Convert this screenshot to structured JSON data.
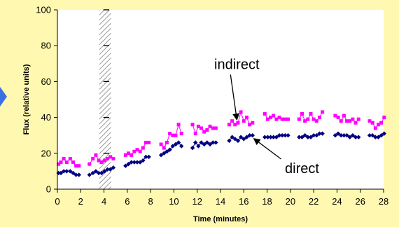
{
  "chart_data": {
    "type": "scatter",
    "xlabel": "Time (minutes)",
    "ylabel": "Flux (relative units)",
    "xlim": [
      0,
      28
    ],
    "ylim": [
      0,
      100
    ],
    "xticks": [
      "0",
      "2",
      "4",
      "6",
      "8",
      "10",
      "12",
      "14",
      "16",
      "18",
      "20",
      "22",
      "24",
      "26",
      "28"
    ],
    "yticks": [
      "0",
      "20",
      "40",
      "60",
      "80",
      "100"
    ],
    "grid": false,
    "shaded_band": {
      "x": [
        3.6,
        4.6
      ],
      "pattern": "diagonal-hatch"
    },
    "series": [
      {
        "name": "indirect",
        "color": "#FF00FF",
        "marker": "square",
        "segments": [
          [
            [
              0.1,
              14
            ],
            [
              0.3,
              15
            ],
            [
              0.55,
              17
            ],
            [
              0.8,
              15
            ],
            [
              1.1,
              17
            ],
            [
              1.35,
              15
            ],
            [
              1.6,
              13
            ],
            [
              1.85,
              13
            ]
          ],
          [
            [
              2.75,
              14
            ],
            [
              3.05,
              17
            ],
            [
              3.3,
              19
            ],
            [
              3.55,
              16
            ],
            [
              3.8,
              15
            ],
            [
              4.05,
              16
            ],
            [
              4.3,
              17
            ],
            [
              4.55,
              18
            ],
            [
              4.8,
              17
            ]
          ],
          [
            [
              5.85,
              19
            ],
            [
              6.1,
              20
            ],
            [
              6.35,
              19
            ],
            [
              6.6,
              21
            ],
            [
              6.85,
              22
            ],
            [
              7.1,
              21
            ],
            [
              7.35,
              23
            ],
            [
              7.6,
              26
            ],
            [
              7.85,
              26
            ]
          ],
          [
            [
              8.9,
              25
            ],
            [
              9.15,
              23
            ],
            [
              9.4,
              26
            ],
            [
              9.65,
              31
            ],
            [
              9.9,
              30
            ],
            [
              10.15,
              30
            ],
            [
              10.4,
              36
            ],
            [
              10.65,
              31
            ]
          ],
          [
            [
              11.6,
              36
            ],
            [
              11.85,
              31
            ],
            [
              12.1,
              35
            ],
            [
              12.35,
              34
            ],
            [
              12.6,
              32
            ],
            [
              12.85,
              33
            ],
            [
              13.1,
              35
            ],
            [
              13.35,
              34
            ],
            [
              13.6,
              34
            ]
          ],
          [
            [
              14.75,
              36
            ],
            [
              15.0,
              38
            ],
            [
              15.25,
              36
            ],
            [
              15.5,
              37
            ],
            [
              15.75,
              43
            ],
            [
              16.0,
              38
            ],
            [
              16.25,
              40
            ],
            [
              16.5,
              36
            ],
            [
              16.75,
              37
            ]
          ],
          [
            [
              17.8,
              42
            ],
            [
              18.05,
              39
            ],
            [
              18.3,
              40
            ],
            [
              18.55,
              41
            ],
            [
              18.8,
              39
            ],
            [
              19.05,
              40
            ],
            [
              19.3,
              39
            ],
            [
              19.55,
              39
            ],
            [
              19.8,
              39
            ]
          ],
          [
            [
              20.75,
              39
            ],
            [
              21.0,
              42
            ],
            [
              21.25,
              38
            ],
            [
              21.5,
              39
            ],
            [
              21.75,
              42
            ],
            [
              22.0,
              39
            ],
            [
              22.25,
              38
            ],
            [
              22.5,
              40
            ],
            [
              22.75,
              43
            ]
          ],
          [
            [
              23.85,
              41
            ],
            [
              24.1,
              40
            ],
            [
              24.35,
              38
            ],
            [
              24.6,
              41
            ],
            [
              24.85,
              38
            ],
            [
              25.1,
              38
            ],
            [
              25.35,
              39
            ],
            [
              25.6,
              37
            ],
            [
              25.85,
              39
            ]
          ],
          [
            [
              26.8,
              38
            ],
            [
              27.05,
              37
            ],
            [
              27.3,
              34
            ],
            [
              27.55,
              36
            ],
            [
              27.8,
              37
            ],
            [
              28.05,
              40
            ]
          ]
        ]
      },
      {
        "name": "direct",
        "color": "#000080",
        "marker": "diamond",
        "segments": [
          [
            [
              0.1,
              9
            ],
            [
              0.3,
              9
            ],
            [
              0.55,
              10
            ],
            [
              0.8,
              10
            ],
            [
              1.1,
              10
            ],
            [
              1.35,
              9
            ],
            [
              1.6,
              8
            ],
            [
              1.85,
              8
            ]
          ],
          [
            [
              2.75,
              8
            ],
            [
              3.05,
              9
            ],
            [
              3.3,
              10
            ],
            [
              3.55,
              9
            ],
            [
              3.8,
              9
            ],
            [
              4.05,
              10
            ],
            [
              4.3,
              11
            ],
            [
              4.55,
              11
            ],
            [
              4.8,
              12
            ]
          ],
          [
            [
              5.85,
              13
            ],
            [
              6.1,
              14
            ],
            [
              6.35,
              15
            ],
            [
              6.6,
              15
            ],
            [
              6.85,
              15
            ],
            [
              7.1,
              15
            ],
            [
              7.35,
              16
            ],
            [
              7.6,
              18
            ],
            [
              7.85,
              18
            ]
          ],
          [
            [
              8.9,
              19
            ],
            [
              9.15,
              20
            ],
            [
              9.4,
              21
            ],
            [
              9.65,
              22
            ],
            [
              9.9,
              24
            ],
            [
              10.15,
              25
            ],
            [
              10.4,
              26
            ],
            [
              10.65,
              24
            ]
          ],
          [
            [
              11.6,
              23
            ],
            [
              11.85,
              26
            ],
            [
              12.1,
              24
            ],
            [
              12.35,
              26
            ],
            [
              12.6,
              25
            ],
            [
              12.85,
              26
            ],
            [
              13.1,
              25
            ],
            [
              13.35,
              26
            ],
            [
              13.6,
              26
            ]
          ],
          [
            [
              14.75,
              27
            ],
            [
              15.0,
              29
            ],
            [
              15.25,
              28
            ],
            [
              15.5,
              27
            ],
            [
              15.75,
              29
            ],
            [
              16.0,
              28
            ],
            [
              16.25,
              29
            ],
            [
              16.5,
              30
            ],
            [
              16.75,
              30
            ]
          ],
          [
            [
              17.8,
              29
            ],
            [
              18.05,
              29
            ],
            [
              18.3,
              29
            ],
            [
              18.55,
              29
            ],
            [
              18.8,
              29
            ],
            [
              19.05,
              30
            ],
            [
              19.3,
              30
            ],
            [
              19.55,
              30
            ],
            [
              19.8,
              30
            ]
          ],
          [
            [
              20.75,
              29
            ],
            [
              21.0,
              29
            ],
            [
              21.25,
              30
            ],
            [
              21.5,
              29
            ],
            [
              21.75,
              29
            ],
            [
              22.0,
              30
            ],
            [
              22.25,
              30
            ],
            [
              22.5,
              31
            ],
            [
              22.75,
              31
            ]
          ],
          [
            [
              23.85,
              30
            ],
            [
              24.1,
              31
            ],
            [
              24.35,
              30
            ],
            [
              24.6,
              30
            ],
            [
              24.85,
              30
            ],
            [
              25.1,
              29
            ],
            [
              25.35,
              30
            ],
            [
              25.6,
              29
            ],
            [
              25.85,
              29
            ]
          ],
          [
            [
              26.8,
              30
            ],
            [
              27.05,
              30
            ],
            [
              27.3,
              29
            ],
            [
              27.55,
              29
            ],
            [
              27.8,
              30
            ],
            [
              28.05,
              31
            ]
          ]
        ]
      }
    ],
    "annotations": [
      {
        "text": "indirect",
        "label_at": [
          15.4,
          67
        ],
        "arrow_to": [
          15.4,
          39
        ]
      },
      {
        "text": "direct",
        "label_at": [
          21.0,
          9
        ],
        "arrow_to": [
          16.9,
          28
        ]
      }
    ]
  }
}
